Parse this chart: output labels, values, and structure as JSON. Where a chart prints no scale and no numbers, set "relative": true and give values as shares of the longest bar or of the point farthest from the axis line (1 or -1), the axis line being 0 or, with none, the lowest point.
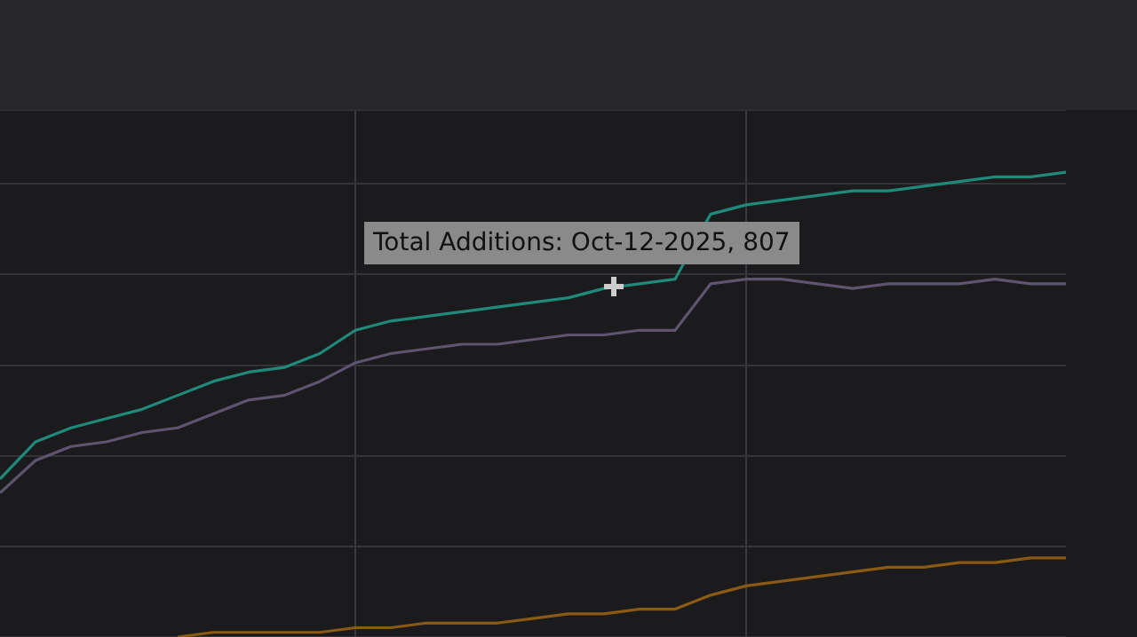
{
  "chart_data": {
    "type": "line",
    "relative": true,
    "grid": true,
    "legend": false,
    "marker": "none",
    "line_style": "solid",
    "categories": [
      null,
      null,
      null,
      null,
      null,
      null,
      null,
      null,
      null,
      null,
      null,
      null,
      null,
      null,
      null,
      null,
      null,
      null,
      null,
      null,
      null,
      null,
      null,
      null,
      null,
      null,
      null,
      null,
      null,
      null,
      null
    ],
    "series": [
      {
        "color": "#1f8a7a",
        "values": [
          0.34,
          0.42,
          0.45,
          0.47,
          0.49,
          0.52,
          0.55,
          0.57,
          0.58,
          0.61,
          0.66,
          0.68,
          0.69,
          0.7,
          0.71,
          0.72,
          0.73,
          0.75,
          0.76,
          0.77,
          0.91,
          0.93,
          0.94,
          0.95,
          0.96,
          0.96,
          0.97,
          0.98,
          0.99,
          0.99,
          1
        ]
      },
      {
        "color": "#5e5470",
        "values": [
          0.31,
          0.38,
          0.41,
          0.42,
          0.44,
          0.45,
          0.48,
          0.51,
          0.52,
          0.55,
          0.59,
          0.61,
          0.62,
          0.63,
          0.63,
          0.64,
          0.65,
          0.65,
          0.66,
          0.66,
          0.76,
          0.77,
          0.77,
          0.76,
          0.75,
          0.76,
          0.76,
          0.76,
          0.77,
          0.76,
          0.76
        ]
      },
      {
        "color": "#8a5a14",
        "values": [
          null,
          null,
          null,
          null,
          null,
          0,
          0.01,
          0.01,
          0.01,
          0.01,
          0.02,
          0.02,
          0.03,
          0.03,
          0.03,
          0.04,
          0.05,
          0.05,
          0.06,
          0.06,
          0.09,
          0.11,
          0.12,
          0.13,
          0.14,
          0.15,
          0.15,
          0.16,
          0.16,
          0.17,
          0.17
        ]
      }
    ],
    "annotations": [
      "Total Additions: Oct-12-2025, 807"
    ]
  }
}
